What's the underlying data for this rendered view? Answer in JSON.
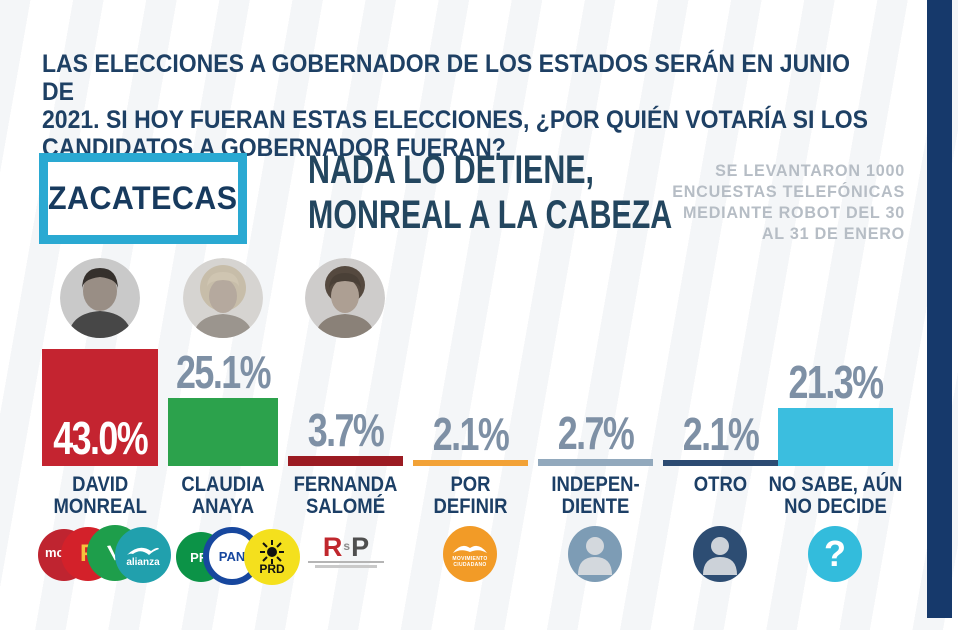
{
  "header": {
    "question_lines": [
      "LAS ELECCIONES A GOBERNADOR DE LOS ESTADOS SERÁN EN JUNIO DE",
      "2021. SI HOY FUERAN ESTAS ELECCIONES, ¿POR QUIÉN VOTARÍA SI LOS",
      "CANDIDATOS A GOBERNADOR FUERAN?"
    ]
  },
  "state_badge": "ZACATECAS",
  "headline_lines": [
    "NADA LO DETIENE,",
    "MONREAL A LA CABEZA"
  ],
  "methodology_note_lines": [
    "SE LEVANTARON 1000",
    "ENCUESTAS TELEFÓNICAS",
    "MEDIANTE ROBOT DEL 30",
    "AL 31 DE ENERO"
  ],
  "chart_data": {
    "type": "bar",
    "title": "NADA LO DETIENE, MONREAL A LA CABEZA — ZACATECAS",
    "categories": [
      "DAVID MONREAL",
      "CLAUDIA ANAYA",
      "FERNANDA SALOMÉ",
      "POR DEFINIR",
      "INDEPENDIENTE",
      "OTRO",
      "NO SABE, AÚN NO DECIDE"
    ],
    "values": [
      43.0,
      25.1,
      3.7,
      2.1,
      2.7,
      2.1,
      21.3
    ],
    "value_labels": [
      "43.0%",
      "25.1%",
      "3.7%",
      "2.1%",
      "2.7%",
      "2.1%",
      "21.3%"
    ],
    "bar_colors": [
      "#c42430",
      "#2ca24c",
      "#9b1b22",
      "#f2a237",
      "#92a9bd",
      "#2c4b72",
      "#3bbedf"
    ],
    "unit": "%",
    "ylim": [
      0,
      43
    ],
    "grid": false,
    "legend": false
  },
  "columns": [
    {
      "name_lines": [
        "DAVID",
        "MONREAL"
      ]
    },
    {
      "name_lines": [
        "CLAUDIA",
        "ANAYA"
      ]
    },
    {
      "name_lines": [
        "FERNANDA",
        "SALOMÉ"
      ]
    },
    {
      "name_lines": [
        "POR",
        "DEFINIR"
      ]
    },
    {
      "name_lines": [
        "INDEPEN-",
        "DIENTE"
      ]
    },
    {
      "name_lines": [
        "OTRO"
      ]
    },
    {
      "name_lines": [
        "NO SABE, AÚN",
        "NO DECIDE"
      ]
    }
  ],
  "logos": {
    "mc_small": "mc",
    "pt": "P",
    "pt_star": "★",
    "pvem": "V",
    "alianza": "alianza",
    "pri": "PRI",
    "pan": "PAN",
    "prd": "PRD",
    "rsp_r": "R",
    "rsp_s": "s",
    "rsp_p": "P",
    "mc_full_lines": [
      "MOVIMIENTO",
      "CIUDADANO"
    ],
    "unknown_mark": "?"
  },
  "colors": {
    "accent_cyan": "#2aa9d2",
    "navy": "#16396b",
    "text_navy": "#1c3f66",
    "pct_slate": "#7e90a5",
    "note_gray": "#b6bdc5"
  }
}
